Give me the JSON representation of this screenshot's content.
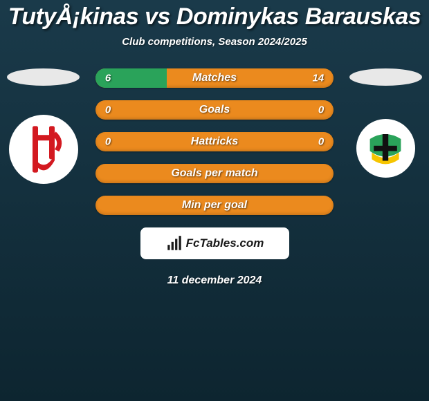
{
  "header": {
    "title": "TutyÅ¡kinas vs Dominykas Barauskas",
    "subtitle": "Club competitions, Season 2024/2025"
  },
  "colors": {
    "bar_base": "#eb8a1e",
    "bar_alt": "#2aa35a",
    "background_top": "#1a3a4a",
    "background_bottom": "#0d2530",
    "text": "#ffffff",
    "pill": "#e8e8e8",
    "logo_bg": "#ffffff",
    "logo_text": "#1a1a1a",
    "crest_left_primary": "#d31920",
    "crest_right_green": "#2aa35a",
    "crest_right_yellow": "#f6c500",
    "crest_right_black": "#111111"
  },
  "bars": [
    {
      "label": "Matches",
      "left": "6",
      "right": "14",
      "left_share": 0.3,
      "left_color": "#2aa35a"
    },
    {
      "label": "Goals",
      "left": "0",
      "right": "0",
      "left_share": 0.0,
      "left_color": "#2aa35a"
    },
    {
      "label": "Hattricks",
      "left": "0",
      "right": "0",
      "left_share": 0.0,
      "left_color": "#2aa35a"
    },
    {
      "label": "Goals per match",
      "left": "",
      "right": "",
      "left_share": 0.0,
      "left_color": "#2aa35a"
    },
    {
      "label": "Min per goal",
      "left": "",
      "right": "",
      "left_share": 0.0,
      "left_color": "#2aa35a"
    }
  ],
  "branding": {
    "site": "FcTables.com"
  },
  "footer": {
    "date": "11 december 2024"
  }
}
